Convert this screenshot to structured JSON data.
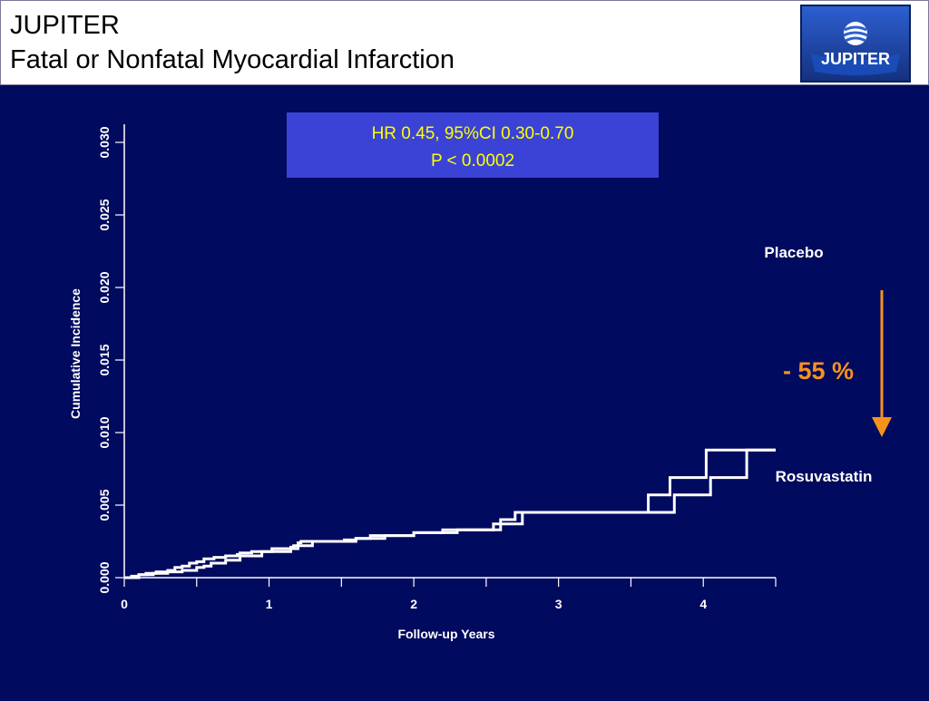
{
  "header": {
    "title_line1": "JUPITER",
    "title_line2": "Fatal or Nonfatal Myocardial Infarction",
    "logo_text": "JUPITER"
  },
  "colors": {
    "background": "#000A5E",
    "header_bg": "#FFFFFF",
    "stats_box": "#3A43D6",
    "line": "#FFFFFF",
    "accent": "#F5921E"
  },
  "chart_data": {
    "type": "line",
    "xlabel": "Follow-up Years",
    "ylabel": "Cumulative Incidence",
    "xlim": [
      0,
      4.5
    ],
    "ylim": [
      0,
      0.03
    ],
    "x_ticks": [
      0,
      1,
      2,
      3,
      4
    ],
    "x_tick_labels": [
      "0",
      "1",
      "2",
      "3",
      "4"
    ],
    "y_ticks": [
      0,
      0.005,
      0.01,
      0.015,
      0.02,
      0.025,
      0.03
    ],
    "y_tick_labels": [
      "0.000",
      "0.005",
      "0.010",
      "0.015",
      "0.020",
      "0.025",
      "0.030"
    ],
    "grid": false,
    "annotation_box": {
      "line1": "HR 0.45, 95%CI 0.30-0.70",
      "line2": "P < 0.0002"
    },
    "reduction_label": "- 55 %",
    "series": [
      {
        "name": "Placebo",
        "x": [
          0,
          0.05,
          0.1,
          0.15,
          0.22,
          0.3,
          0.35,
          0.4,
          0.45,
          0.5,
          0.55,
          0.62,
          0.7,
          0.78,
          0.8,
          0.88,
          0.95,
          1.0,
          1.02,
          1.05,
          1.08,
          1.1,
          1.12,
          1.15,
          1.17,
          1.2,
          1.22,
          1.3,
          1.37,
          1.45,
          1.52,
          1.6,
          1.62,
          1.64,
          1.66,
          1.68,
          1.7,
          1.72,
          1.74,
          1.76,
          1.78,
          1.8,
          1.9,
          2.0,
          2.02,
          2.1,
          2.2,
          2.25,
          2.3,
          2.33,
          2.35,
          2.38,
          2.4,
          2.42,
          2.45,
          2.5,
          2.6,
          2.7,
          2.75,
          2.78,
          2.8,
          2.82,
          2.85,
          2.9,
          2.95,
          2.98,
          3.0,
          3.05,
          3.1,
          3.15,
          3.17,
          3.2,
          3.3,
          3.4,
          3.45,
          3.5,
          3.55,
          3.6,
          3.7,
          3.8,
          4.0,
          4.05,
          4.1,
          4.3,
          4.5
        ],
        "y": [
          0,
          0.0001,
          0.0002,
          0.0003,
          0.0004,
          0.0005,
          0.0007,
          0.0008,
          0.001,
          0.0011,
          0.0013,
          0.0014,
          0.0015,
          0.0016,
          0.0017,
          0.0018,
          0.0018,
          0.0018,
          0.002,
          0.002,
          0.002,
          0.002,
          0.002,
          0.0021,
          0.0022,
          0.0024,
          0.0025,
          0.0025,
          0.0025,
          0.0025,
          0.0026,
          0.0027,
          0.0027,
          0.0027,
          0.0027,
          0.0027,
          0.0029,
          0.0029,
          0.0029,
          0.0029,
          0.0029,
          0.0029,
          0.0029,
          0.0031,
          0.0031,
          0.0031,
          0.0031,
          0.0031,
          0.0033,
          0.0033,
          0.0033,
          0.0033,
          0.0033,
          0.0033,
          0.0033,
          0.0033,
          0.004,
          0.0045,
          0.0045,
          0.0045,
          0.0045,
          0.0045,
          0.0045,
          0.0045,
          0.0045,
          0.0045,
          0.0045,
          0.0045,
          0.0045,
          0.0045,
          0.0045,
          0.0045,
          0.0045,
          0.0045,
          0.0045,
          0.0045,
          0.0045,
          0.0045,
          0.0045,
          0.0057,
          0.0057,
          0.0069,
          0.0069,
          0.0088,
          0.0088
        ],
        "label": "Placebo"
      },
      {
        "name": "Rosuvastatin",
        "label": "Rosuvastatin",
        "x": [
          0,
          0.1,
          0.2,
          0.25,
          0.3,
          0.35,
          0.4,
          0.45,
          0.5,
          0.55,
          0.6,
          0.7,
          0.8,
          0.95,
          1.02,
          1.15,
          1.2,
          1.3,
          1.5,
          1.6,
          1.8,
          2.0,
          2.2,
          2.4,
          2.55,
          2.75,
          3.0,
          3.2,
          3.4,
          3.6,
          3.62,
          3.75,
          3.77,
          4.0,
          4.02,
          4.5
        ],
        "y": [
          0,
          0.0002,
          0.0003,
          0.0003,
          0.0004,
          0.0004,
          0.0005,
          0.0005,
          0.0007,
          0.0008,
          0.001,
          0.0012,
          0.0015,
          0.0018,
          0.0018,
          0.002,
          0.0022,
          0.0025,
          0.0025,
          0.0027,
          0.0029,
          0.0031,
          0.0033,
          0.0033,
          0.0037,
          0.0045,
          0.0045,
          0.0045,
          0.0045,
          0.0045,
          0.0057,
          0.0057,
          0.0069,
          0.0069,
          0.0088,
          0.0088
        ]
      }
    ]
  }
}
